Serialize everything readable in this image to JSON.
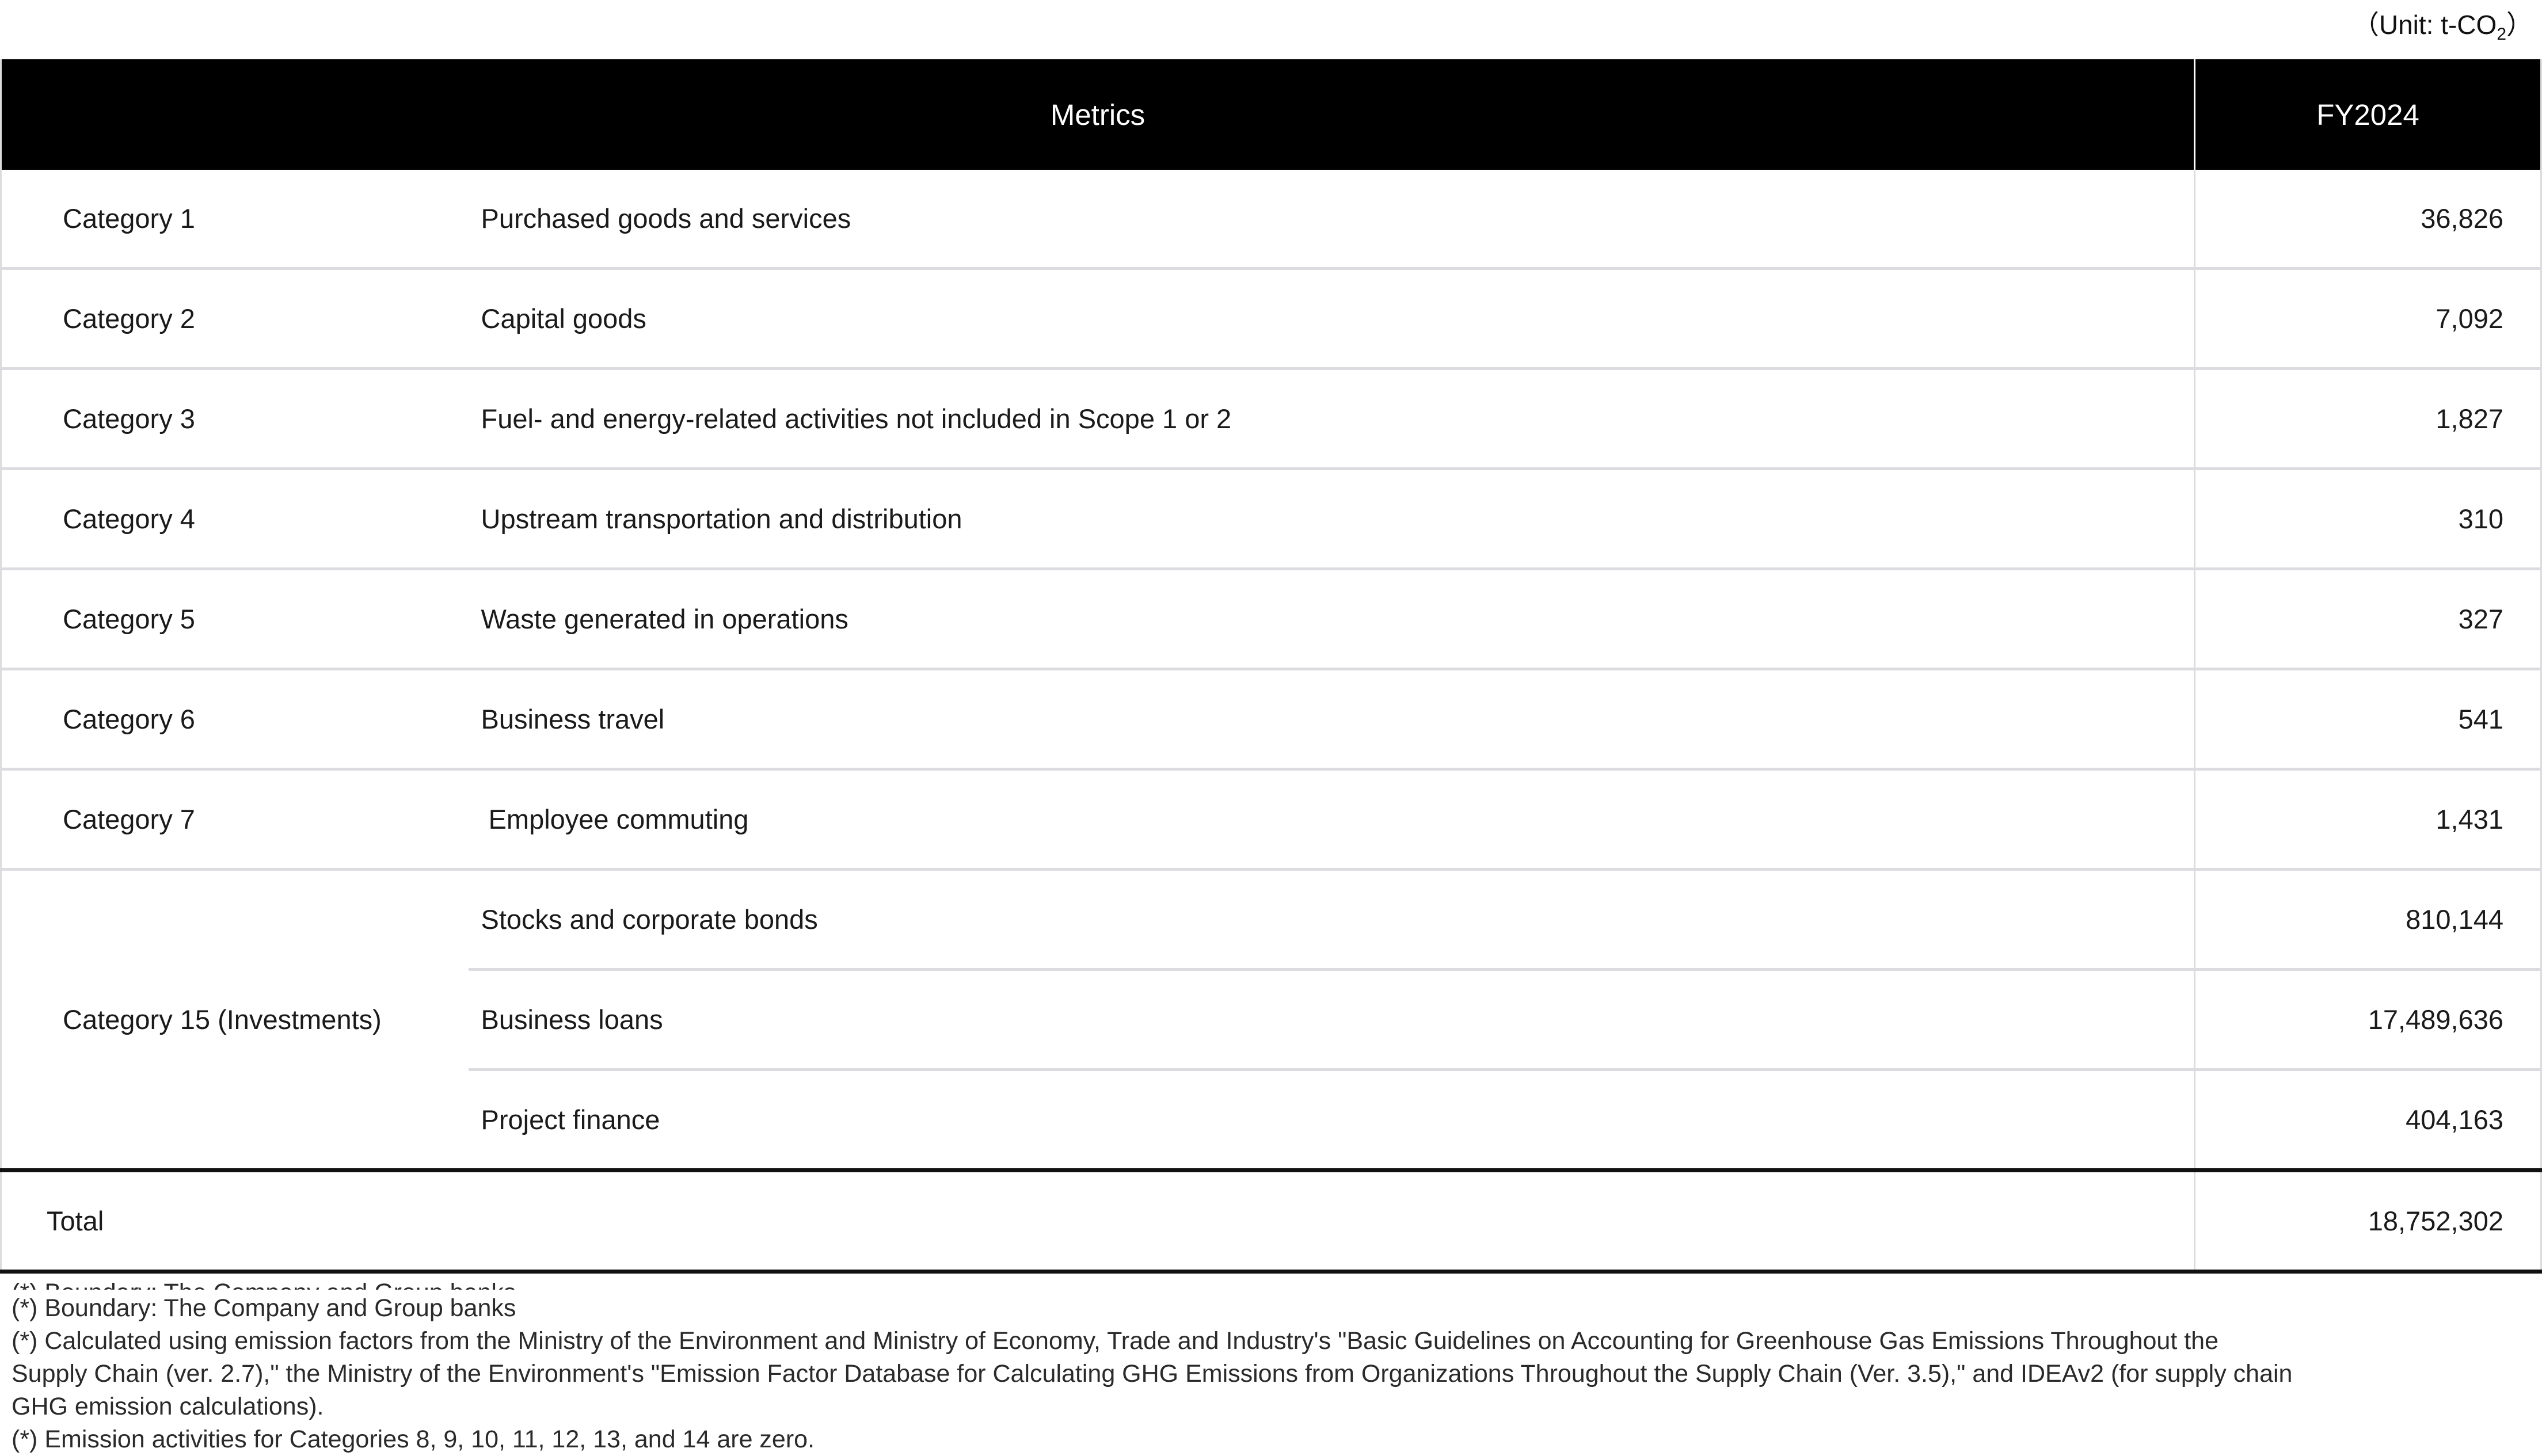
{
  "unit_label": {
    "prefix": "（Unit: t-CO",
    "subscript": "2",
    "suffix": "）"
  },
  "table": {
    "headers": {
      "metrics": "Metrics",
      "fiscal_year": "FY2024"
    },
    "rows": [
      {
        "category": "Category 1",
        "metric": "Purchased goods and services",
        "value": "36,826"
      },
      {
        "category": "Category 2",
        "metric": "Capital goods",
        "value": "7,092"
      },
      {
        "category": "Category 3",
        "metric": "Fuel- and energy-related activities not included in Scope 1 or 2",
        "value": "1,827"
      },
      {
        "category": "Category 4",
        "metric": "Upstream transportation and distribution",
        "value": "310"
      },
      {
        "category": "Category 5",
        "metric": "Waste generated in operations",
        "value": "327"
      },
      {
        "category": "Category 6",
        "metric": "Business travel",
        "value": "541"
      },
      {
        "category": "Category 7",
        "metric": " Employee commuting",
        "value": "1,431"
      }
    ],
    "category15": {
      "label": "Category 15 (Investments)",
      "subrows": [
        {
          "metric": "Stocks and corporate bonds",
          "value": "810,144"
        },
        {
          "metric": "Business loans",
          "value": "17,489,636"
        },
        {
          "metric": "Project finance",
          "value": "404,163"
        }
      ]
    },
    "total": {
      "label": "Total",
      "value": "18,752,302"
    }
  },
  "footnotes": {
    "clipped": "(*) Boundary: The Company and Group banks",
    "lines": [
      "(*) Boundary: The Company and Group banks",
      "(*) Calculated using emission factors from the Ministry of the Environment and Ministry of Economy, Trade and Industry's \"Basic Guidelines on Accounting for Greenhouse Gas Emissions Throughout the",
      "Supply Chain (ver. 2.7),\" the Ministry of the Environment's \"Emission Factor Database for Calculating GHG Emissions from Organizations Throughout the Supply Chain (Ver. 3.5),\" and IDEAv2 (for supply chain",
      "GHG emission calculations).",
      "(*) Emission activities for Categories 8, 9, 10, 11, 12, 13, and 14 are zero."
    ]
  },
  "colors": {
    "header_bg": "#000000",
    "header_text": "#ffffff",
    "row_divider": "#dcdce0",
    "strong_border": "#111111"
  }
}
